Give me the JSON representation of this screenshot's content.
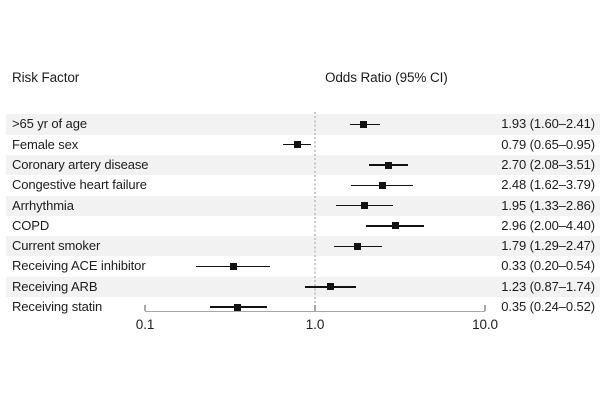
{
  "header": {
    "left": "Risk Factor",
    "right": "Odds Ratio (95% CI)"
  },
  "chart_data": {
    "type": "forest",
    "scale": "log10",
    "title": "",
    "xlabel": "",
    "xlim": [
      0.1,
      10.0
    ],
    "reference_line": 1.0,
    "x_ticks": [
      {
        "value": 0.1,
        "label": "0.1"
      },
      {
        "value": 1.0,
        "label": "1.0"
      },
      {
        "value": 10.0,
        "label": "10.0"
      }
    ],
    "rows": [
      {
        "label": ">65 yr of age",
        "or": 1.93,
        "ci_low": 1.6,
        "ci_high": 2.41,
        "text": "1.93 (1.60–2.41)"
      },
      {
        "label": "Female sex",
        "or": 0.79,
        "ci_low": 0.65,
        "ci_high": 0.95,
        "text": "0.79 (0.65–0.95)"
      },
      {
        "label": "Coronary artery disease",
        "or": 2.7,
        "ci_low": 2.08,
        "ci_high": 3.51,
        "text": "2.70 (2.08–3.51)"
      },
      {
        "label": "Congestive heart failure",
        "or": 2.48,
        "ci_low": 1.62,
        "ci_high": 3.79,
        "text": "2.48 (1.62–3.79)"
      },
      {
        "label": "Arrhythmia",
        "or": 1.95,
        "ci_low": 1.33,
        "ci_high": 2.86,
        "text": "1.95 (1.33–2.86)"
      },
      {
        "label": "COPD",
        "or": 2.96,
        "ci_low": 2.0,
        "ci_high": 4.4,
        "text": "2.96 (2.00–4.40)"
      },
      {
        "label": "Current smoker",
        "or": 1.79,
        "ci_low": 1.29,
        "ci_high": 2.47,
        "text": "1.79 (1.29–2.47)"
      },
      {
        "label": "Receiving ACE inhibitor",
        "or": 0.33,
        "ci_low": 0.2,
        "ci_high": 0.54,
        "text": "0.33 (0.20–0.54)"
      },
      {
        "label": "Receiving ARB",
        "or": 1.23,
        "ci_low": 0.87,
        "ci_high": 1.74,
        "text": "1.23 (0.87–1.74)"
      },
      {
        "label": "Receiving statin",
        "or": 0.35,
        "ci_low": 0.24,
        "ci_high": 0.52,
        "text": "0.35 (0.24–0.52)"
      }
    ]
  },
  "colors": {
    "band": "#f2f2f2",
    "marker": "#121212",
    "axis": "#a8a8a8",
    "refline": "#c9c9c9",
    "text": "#1c1c1c"
  }
}
